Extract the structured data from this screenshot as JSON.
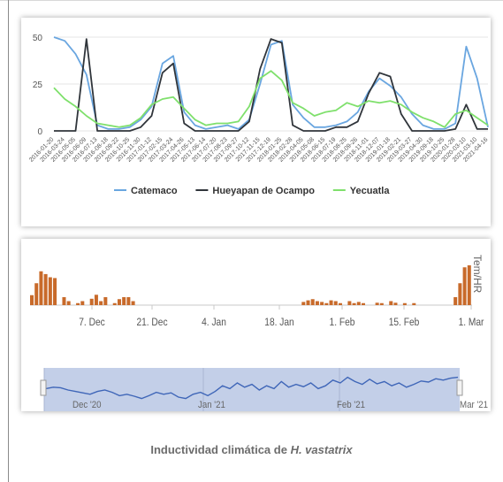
{
  "caption": {
    "prefix": "Inductividad climática de ",
    "species": "H. vastatrix"
  },
  "chart_data": [
    {
      "type": "line",
      "title": "",
      "xlabel": "",
      "ylabel": "",
      "ylim": [
        0,
        50
      ],
      "yticks": [
        0,
        25,
        50
      ],
      "grid": true,
      "legend": "bottom",
      "x": [
        "2016-01-20",
        "2016-02-24",
        "2016-03-30",
        "2016-05-05",
        "2016-06-09",
        "2016-07-13",
        "2016-08-18",
        "2016-09-22",
        "2016-10-27",
        "2016-11-30",
        "2017-01-05",
        "2017-02-08",
        "2017-03-15",
        "2017-04-18",
        "2017-05-24",
        "2017-06-26",
        "2017-08-02",
        "2017-09-05",
        "2017-10-12",
        "2017-11-15",
        "2017-12-21",
        "2018-01-24",
        "2018-02-28",
        "2018-04-03",
        "2018-05-09",
        "2018-06-11",
        "2018-07-19",
        "2018-08-21",
        "2018-09-26",
        "2018-10-29",
        "2018-12-05",
        "2019-01-07",
        "2019-02-13",
        "2019-03-22",
        "2019-04-24",
        "2019-06-19",
        "2019-09-18",
        "2019-10-25",
        "2020-01-28",
        "2020-03-10",
        "2020-04-16"
      ],
      "x_tick_labels": [
        "2016-01-20",
        "2016-03-24",
        "2016-05-05",
        "2016-06-09",
        "2016-07-13",
        "2016-08-18",
        "2016-09-22",
        "2016-10-25",
        "2016-11-30",
        "2017-01-12",
        "2017-02-15",
        "2017-03-24",
        "2017-04-26",
        "2017-05-13",
        "2017-06-14",
        "2017-07-20",
        "2017-08-23",
        "2017-09-27",
        "2017-10-12",
        "2017-11-15",
        "2017-12-19",
        "2018-01-25",
        "2018-02-28",
        "2018-04-05",
        "2018-05-08",
        "2018-06-15",
        "2018-07-19",
        "2018-08-25",
        "2018-09-26",
        "2018-11-01",
        "2018-12-07",
        "2019-01-18",
        "2019-02-21",
        "2019-03-27",
        "2019-04-30",
        "2019-09-18",
        "2019-10-25",
        "2020-01-28",
        "2020-03-10",
        "2021-03-10",
        "2021-04-16"
      ],
      "series": [
        {
          "name": "Catemaco",
          "color": "#6aa6e0",
          "values": [
            50,
            48,
            41,
            30,
            3,
            1,
            1,
            2,
            6,
            13,
            36,
            40,
            10,
            3,
            1,
            2,
            3,
            1,
            6,
            25,
            46,
            48,
            14,
            7,
            2,
            2,
            3,
            5,
            10,
            21,
            28,
            24,
            18,
            9,
            3,
            1,
            1,
            4,
            45,
            28,
            2
          ]
        },
        {
          "name": "Hueyapan de Ocampo",
          "color": "#30353b",
          "values": [
            0,
            0,
            0,
            49,
            0,
            0,
            0,
            0,
            2,
            8,
            31,
            36,
            4,
            0,
            0,
            0,
            0,
            0,
            5,
            33,
            49,
            47,
            3,
            0,
            0,
            0,
            2,
            2,
            5,
            20,
            31,
            29,
            9,
            0,
            0,
            0,
            0,
            1,
            14,
            1,
            1
          ]
        },
        {
          "name": "Yecuatla",
          "color": "#7fe06c",
          "values": [
            23,
            17,
            13,
            8,
            4,
            3,
            2,
            3,
            7,
            14,
            17,
            18,
            12,
            6,
            3,
            4,
            4,
            5,
            13,
            28,
            32,
            27,
            15,
            12,
            8,
            10,
            11,
            15,
            13,
            16,
            15,
            16,
            14,
            10,
            7,
            5,
            2,
            9,
            11,
            7,
            3
          ]
        }
      ]
    },
    {
      "type": "bar",
      "title": "",
      "ylabel": "Tem/HR",
      "x_tick_labels": [
        "7. Dec",
        "21. Dec",
        "4. Jan",
        "18. Jan",
        "1. Feb",
        "15. Feb",
        "1. Mar"
      ],
      "bar_color": "#c86a2a",
      "values": [
        0.25,
        0.55,
        0.85,
        0.78,
        0.7,
        0.68,
        0,
        0.2,
        0.1,
        0,
        0.05,
        0.1,
        0,
        0.16,
        0.26,
        0.1,
        0.2,
        0,
        0.05,
        0.15,
        0.2,
        0.2,
        0.1,
        0,
        0,
        0,
        0,
        0,
        0,
        0,
        0,
        0,
        0,
        0,
        0,
        0,
        0,
        0,
        0,
        0,
        0,
        0,
        0,
        0,
        0,
        0,
        0,
        0,
        0,
        0,
        0,
        0,
        0,
        0,
        0,
        0,
        0,
        0,
        0,
        0.08,
        0.12,
        0.15,
        0.1,
        0.08,
        0.05,
        0.12,
        0.1,
        0.05,
        0,
        0.1,
        0.05,
        0.08,
        0.05,
        0,
        0,
        0.06,
        0.05,
        0,
        0.1,
        0.06,
        0,
        0.05,
        0,
        0.05,
        0,
        0,
        0,
        0,
        0,
        0,
        0,
        0,
        0.2,
        0.55,
        0.95,
        1.0
      ],
      "navigator": {
        "labels": [
          "Dec '20",
          "Jan '21",
          "Feb '21",
          "Mar '21"
        ],
        "line_color": "#3f66b8",
        "values": [
          0.55,
          0.6,
          0.58,
          0.5,
          0.45,
          0.4,
          0.35,
          0.45,
          0.5,
          0.42,
          0.3,
          0.35,
          0.28,
          0.2,
          0.3,
          0.42,
          0.35,
          0.4,
          0.25,
          0.2,
          0.35,
          0.42,
          0.3,
          0.45,
          0.65,
          0.55,
          0.75,
          0.6,
          0.7,
          0.5,
          0.65,
          0.55,
          0.8,
          0.6,
          0.7,
          0.62,
          0.75,
          0.55,
          0.65,
          0.85,
          0.75,
          0.95,
          0.8,
          0.7,
          0.88,
          0.72,
          0.8,
          0.65,
          0.75,
          0.6,
          0.7,
          0.82,
          0.78,
          0.9,
          0.85,
          0.92,
          0.95
        ]
      }
    }
  ]
}
